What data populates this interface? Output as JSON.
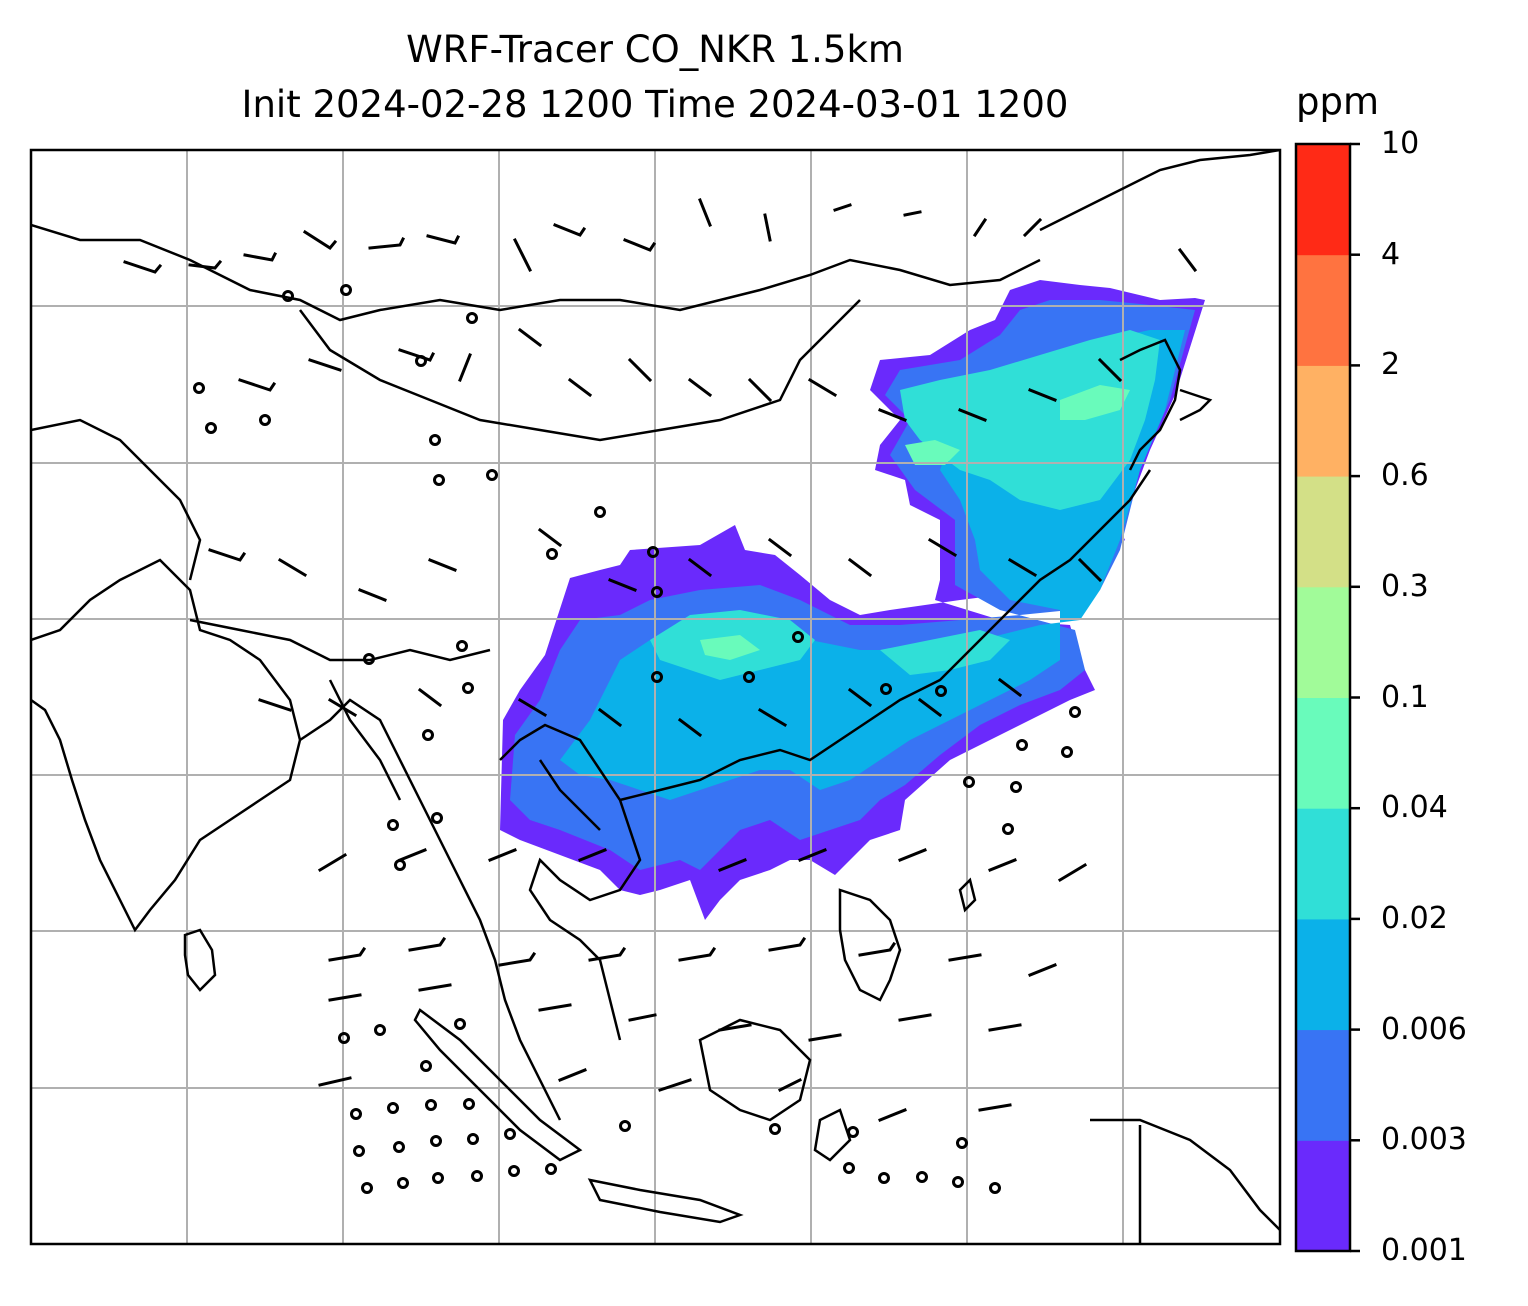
{
  "title": {
    "line1": "WRF-Tracer CO_NKR 1.5km",
    "line2": "Init 2024-02-28 1200 Time 2024-03-01 1200"
  },
  "colorbar": {
    "unit": "ppm",
    "levels": [
      "0.001",
      "0.003",
      "0.006",
      "0.02",
      "0.04",
      "0.1",
      "0.3",
      "0.6",
      "2",
      "4",
      "10"
    ],
    "colors": [
      "#6a2afc",
      "#3874f4",
      "#0bb1e9",
      "#30dfd7",
      "#69fbbb",
      "#a1fb99",
      "#d3e087",
      "#ffb163",
      "#ff7340",
      "#ff2a16"
    ]
  },
  "map": {
    "background": "#ffffff",
    "gridlines": true,
    "features": [
      "coastlines",
      "country-borders",
      "wind-barbs",
      "calm-circles"
    ]
  }
}
